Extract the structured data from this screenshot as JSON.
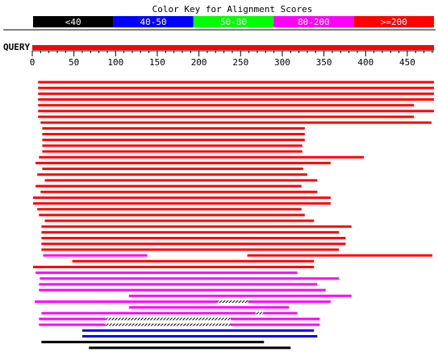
{
  "chart_data": {
    "type": "bar",
    "title": "Color Key for Alignment Scores",
    "legend": [
      {
        "label": "<40",
        "color": "#000000"
      },
      {
        "label": "40-50",
        "color": "#0000ff"
      },
      {
        "label": "50-80",
        "color": "#00ff00"
      },
      {
        "label": "80-200",
        "color": "#ff00ff"
      },
      {
        "label": ">=200",
        "color": "#ff0000"
      }
    ],
    "query_label": "QUERY",
    "query_range": [
      0,
      482
    ],
    "xlim": [
      0,
      482
    ],
    "xticks": [
      0,
      50,
      100,
      150,
      200,
      250,
      300,
      350,
      400,
      450
    ],
    "xtick_labels": [
      "0",
      "50",
      "100",
      "150",
      "200",
      "250",
      "300",
      "350",
      "400",
      "450"
    ],
    "minor_tick_step": 10,
    "hits": [
      {
        "segments": [
          {
            "start": 7,
            "end": 482,
            "color": "#ff0000"
          }
        ]
      },
      {
        "segments": [
          {
            "start": 7,
            "end": 482,
            "color": "#ff0000"
          }
        ]
      },
      {
        "segments": [
          {
            "start": 7,
            "end": 482,
            "color": "#ff0000"
          }
        ]
      },
      {
        "segments": [
          {
            "start": 7,
            "end": 482,
            "color": "#ff0000"
          }
        ]
      },
      {
        "segments": [
          {
            "start": 7,
            "end": 458,
            "color": "#ff0000"
          }
        ]
      },
      {
        "segments": [
          {
            "start": 7,
            "end": 482,
            "color": "#ff0000"
          }
        ]
      },
      {
        "segments": [
          {
            "start": 7,
            "end": 458,
            "color": "#ff0000"
          }
        ]
      },
      {
        "segments": [
          {
            "start": 10,
            "end": 479,
            "color": "#ff0000"
          }
        ]
      },
      {
        "segments": [
          {
            "start": 12,
            "end": 327,
            "color": "#ff0000"
          }
        ]
      },
      {
        "segments": [
          {
            "start": 12,
            "end": 327,
            "color": "#ff0000"
          }
        ]
      },
      {
        "segments": [
          {
            "start": 12,
            "end": 327,
            "color": "#ff0000"
          }
        ]
      },
      {
        "segments": [
          {
            "start": 12,
            "end": 324,
            "color": "#ff0000"
          }
        ]
      },
      {
        "segments": [
          {
            "start": 12,
            "end": 324,
            "color": "#ff0000"
          }
        ]
      },
      {
        "segments": [
          {
            "start": 8,
            "end": 398,
            "color": "#ff0000"
          }
        ]
      },
      {
        "segments": [
          {
            "start": 4,
            "end": 358,
            "color": "#ff0000"
          }
        ]
      },
      {
        "segments": [
          {
            "start": 12,
            "end": 325,
            "color": "#ff0000"
          }
        ]
      },
      {
        "segments": [
          {
            "start": 6,
            "end": 330,
            "color": "#ff0000"
          }
        ]
      },
      {
        "segments": [
          {
            "start": 15,
            "end": 342,
            "color": "#ff0000"
          }
        ]
      },
      {
        "segments": [
          {
            "start": 4,
            "end": 323,
            "color": "#ff0000"
          }
        ]
      },
      {
        "segments": [
          {
            "start": 10,
            "end": 342,
            "color": "#ff0000"
          }
        ]
      },
      {
        "segments": [
          {
            "start": 1,
            "end": 358,
            "color": "#ff0000"
          }
        ]
      },
      {
        "segments": [
          {
            "start": 1,
            "end": 358,
            "color": "#ff0000"
          }
        ]
      },
      {
        "segments": [
          {
            "start": 6,
            "end": 323,
            "color": "#ff0000"
          }
        ]
      },
      {
        "segments": [
          {
            "start": 8,
            "end": 327,
            "color": "#ff0000"
          }
        ]
      },
      {
        "segments": [
          {
            "start": 15,
            "end": 338,
            "color": "#ff0000"
          }
        ]
      },
      {
        "segments": [
          {
            "start": 11,
            "end": 383,
            "color": "#ff0000"
          }
        ]
      },
      {
        "segments": [
          {
            "start": 11,
            "end": 368,
            "color": "#ff0000"
          }
        ]
      },
      {
        "segments": [
          {
            "start": 11,
            "end": 376,
            "color": "#ff0000"
          }
        ]
      },
      {
        "segments": [
          {
            "start": 11,
            "end": 376,
            "color": "#ff0000"
          }
        ]
      },
      {
        "segments": [
          {
            "start": 11,
            "end": 368,
            "color": "#ff0000"
          }
        ]
      },
      {
        "segments": [
          {
            "start": 13,
            "end": 138,
            "color": "#ff00ff"
          },
          {
            "start": 258,
            "end": 480,
            "color": "#ff0000"
          }
        ]
      },
      {
        "segments": [
          {
            "start": 48,
            "end": 338,
            "color": "#ff0000"
          }
        ]
      },
      {
        "segments": [
          {
            "start": 1,
            "end": 338,
            "color": "#ff0000"
          }
        ]
      },
      {
        "segments": [
          {
            "start": 4,
            "end": 318,
            "color": "#ff00ff"
          }
        ]
      },
      {
        "segments": [
          {
            "start": 9,
            "end": 368,
            "color": "#ff00ff"
          }
        ]
      },
      {
        "segments": [
          {
            "start": 8,
            "end": 342,
            "color": "#ff00ff"
          }
        ]
      },
      {
        "segments": [
          {
            "start": 8,
            "end": 352,
            "color": "#ff00ff"
          }
        ]
      },
      {
        "segments": [
          {
            "start": 116,
            "end": 383,
            "color": "#ff00ff"
          }
        ]
      },
      {
        "segments": [
          {
            "start": 3,
            "end": 222,
            "color": "#ff00ff"
          },
          {
            "start": 222,
            "end": 259,
            "color": "hatch"
          },
          {
            "start": 259,
            "end": 358,
            "color": "#ff00ff"
          }
        ]
      },
      {
        "segments": [
          {
            "start": 116,
            "end": 308,
            "color": "#ff00ff"
          }
        ]
      },
      {
        "segments": [
          {
            "start": 11,
            "end": 268,
            "color": "#ff00ff"
          },
          {
            "start": 268,
            "end": 277,
            "color": "hatch"
          },
          {
            "start": 277,
            "end": 318,
            "color": "#ff00ff"
          }
        ]
      },
      {
        "segments": [
          {
            "start": 8,
            "end": 88,
            "color": "#ff00ff"
          },
          {
            "start": 88,
            "end": 238,
            "color": "hatch"
          },
          {
            "start": 238,
            "end": 345,
            "color": "#ff00ff"
          }
        ]
      },
      {
        "segments": [
          {
            "start": 8,
            "end": 88,
            "color": "#ff00ff"
          },
          {
            "start": 88,
            "end": 238,
            "color": "hatch"
          },
          {
            "start": 238,
            "end": 345,
            "color": "#ff00ff"
          }
        ]
      },
      {
        "segments": [
          {
            "start": 60,
            "end": 338,
            "color": "#0000ff"
          }
        ]
      },
      {
        "segments": [
          {
            "start": 60,
            "end": 342,
            "color": "#0000ff"
          }
        ]
      },
      {
        "segments": [
          {
            "start": 11,
            "end": 278,
            "color": "#000000"
          }
        ]
      },
      {
        "segments": [
          {
            "start": 68,
            "end": 310,
            "color": "#000000"
          }
        ]
      }
    ]
  }
}
